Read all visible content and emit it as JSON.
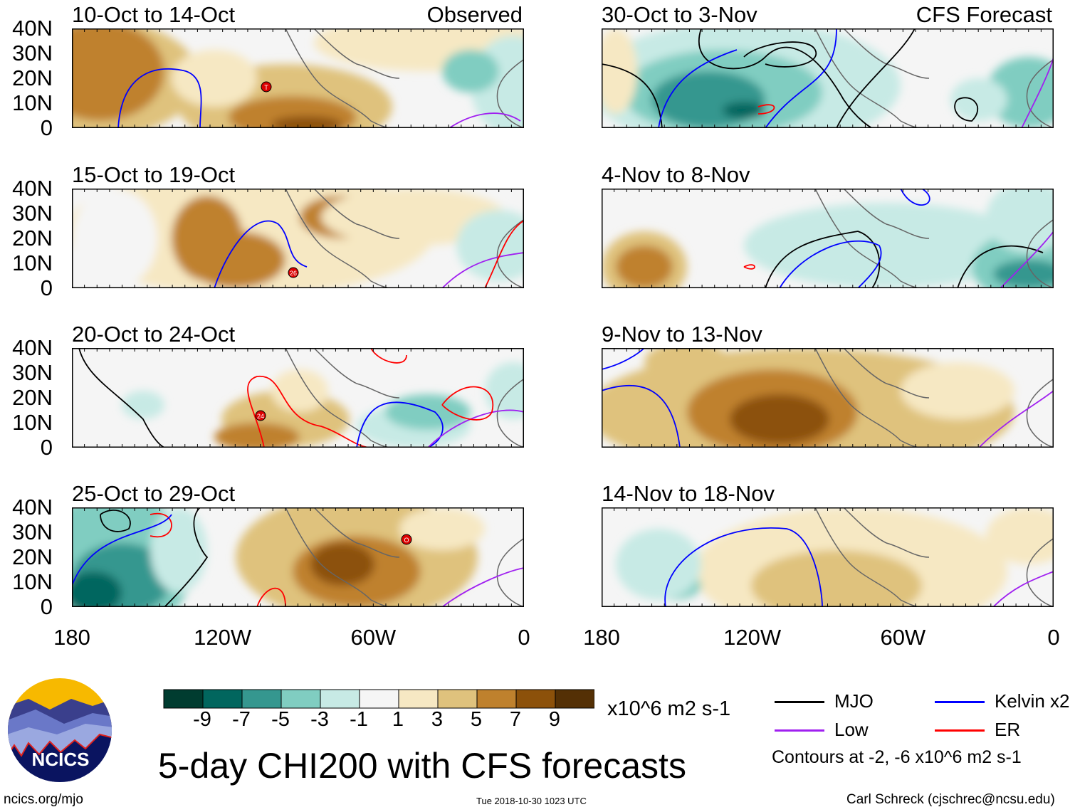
{
  "chart_data": {
    "type": "heatmap",
    "title": "5-day CHI200 with CFS forecasts",
    "units": "x10^6 m2 s-1",
    "lat_ticks": [
      "40N",
      "30N",
      "20N",
      "10N",
      "0"
    ],
    "lon_ticks": [
      "180",
      "120W",
      "60W",
      "0"
    ],
    "colorbar": {
      "ticks": [
        "-9",
        "-7",
        "-5",
        "-3",
        "-1",
        "1",
        "3",
        "5",
        "7",
        "9"
      ],
      "colors": [
        "#003c30",
        "#01665e",
        "#35978f",
        "#80cdc1",
        "#c7eae5",
        "#f5f5f5",
        "#f6e8c3",
        "#dfc27d",
        "#bf812d",
        "#8c510a",
        "#543005"
      ]
    },
    "columns": [
      {
        "label": "Observed",
        "panels": [
          "10-Oct to 14-Oct",
          "15-Oct to 19-Oct",
          "20-Oct to 24-Oct",
          "25-Oct to 29-Oct"
        ]
      },
      {
        "label": "CFS Forecast",
        "panels": [
          "30-Oct to 3-Nov",
          "4-Nov to 8-Nov",
          "9-Nov to 13-Nov",
          "14-Nov to 18-Nov"
        ]
      }
    ],
    "legend": [
      {
        "label": "MJO",
        "color": "#000000"
      },
      {
        "label": "Kelvin x2",
        "color": "#0000ff"
      },
      {
        "label": "Low",
        "color": "#a020f0"
      },
      {
        "label": "ER",
        "color": "#ff0000"
      }
    ],
    "contour_note": "Contours at -2, -6 x10^6 m2 s-1",
    "storm_labels": [
      "T",
      "26",
      "24",
      "O"
    ]
  },
  "logo": {
    "text": "NCICS"
  },
  "footer": {
    "left": "ncics.org/mjo",
    "center": "Tue 2018-10-30 1023 UTC",
    "right": "Carl Schreck (cjschrec@ncsu.edu)"
  }
}
